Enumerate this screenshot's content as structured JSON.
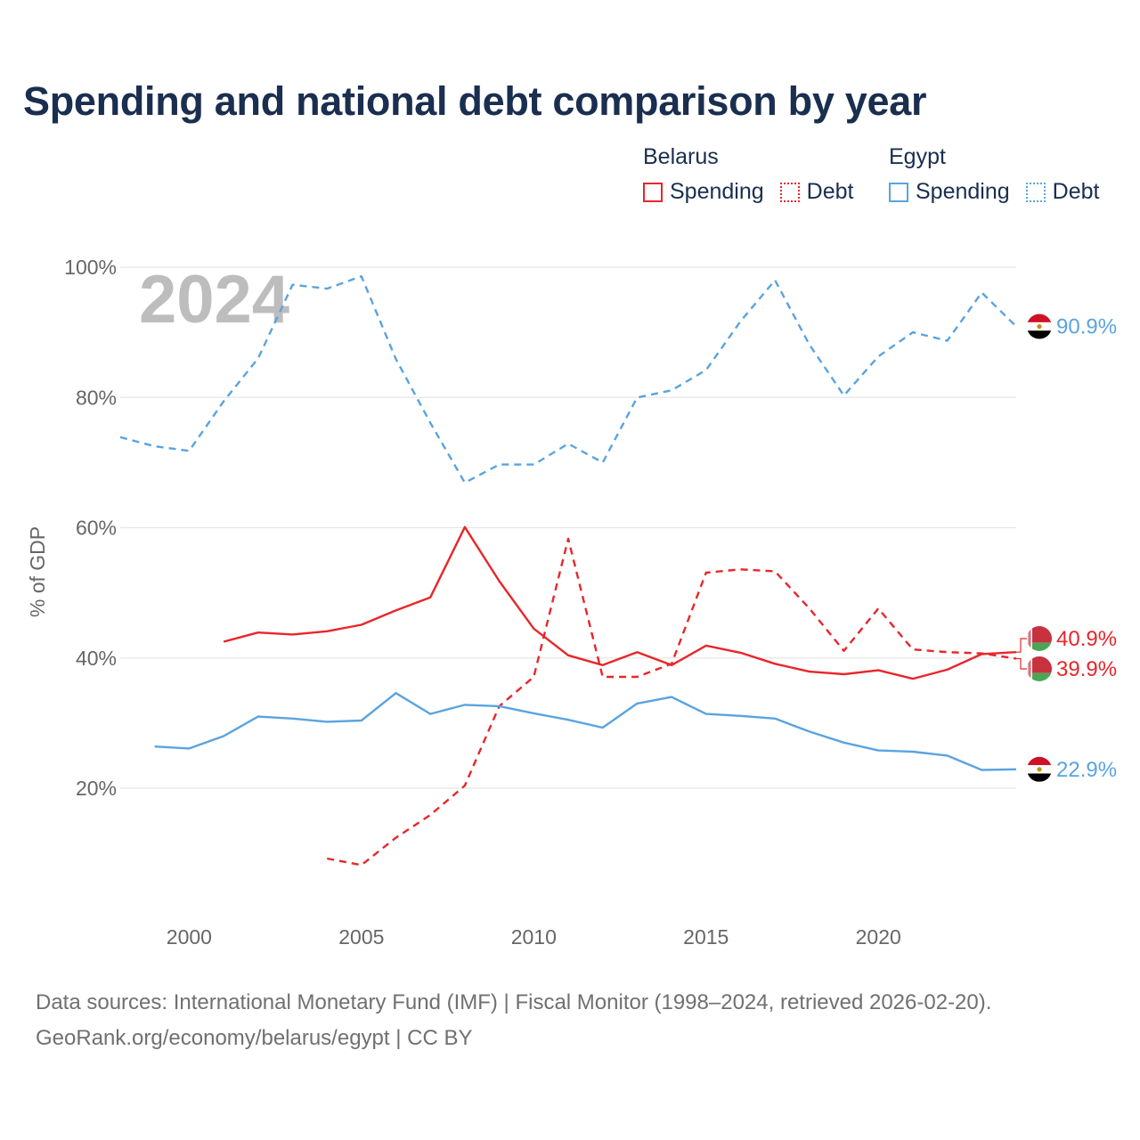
{
  "title": "Spending and national debt comparison by year",
  "legend": {
    "groups": [
      {
        "name": "Belarus",
        "color": "#e8262a",
        "items": [
          "Spending",
          "Debt"
        ]
      },
      {
        "name": "Egypt",
        "color": "#5aa3e0",
        "items": [
          "Spending",
          "Debt"
        ]
      }
    ]
  },
  "year_label": "2024",
  "source_line1": "Data sources: International Monetary Fund (IMF) | Fiscal Monitor (1998–2024, retrieved 2026-02-20).",
  "source_line2": "GeoRank.org/economy/belarus/egypt | CC BY",
  "chart_data": {
    "type": "line",
    "title": "Spending and national debt comparison by year",
    "xlabel": "",
    "ylabel": "% of GDP",
    "xlim": [
      1998,
      2024
    ],
    "ylim": [
      5,
      102
    ],
    "xticks": [
      2000,
      2005,
      2010,
      2015,
      2020
    ],
    "yticks": [
      20,
      40,
      60,
      80,
      100
    ],
    "ytick_labels": [
      "20%",
      "40%",
      "60%",
      "80%",
      "100%"
    ],
    "grid": true,
    "series": [
      {
        "name": "Belarus Spending",
        "country": "Belarus",
        "metric": "Spending",
        "color": "#e8262a",
        "dash": "solid",
        "x": [
          2001,
          2002,
          2003,
          2004,
          2005,
          2006,
          2007,
          2008,
          2009,
          2010,
          2011,
          2012,
          2013,
          2014,
          2015,
          2016,
          2017,
          2018,
          2019,
          2020,
          2021,
          2022,
          2023,
          2024
        ],
        "values": [
          42.5,
          43.9,
          43.6,
          44.1,
          45.1,
          47.3,
          49.3,
          60.1,
          51.8,
          44.5,
          40.4,
          38.9,
          40.9,
          38.9,
          41.9,
          40.8,
          39.1,
          37.9,
          37.5,
          38.1,
          36.8,
          38.2,
          40.6,
          40.9
        ],
        "end_label": "40.9%"
      },
      {
        "name": "Belarus Debt",
        "country": "Belarus",
        "metric": "Debt",
        "color": "#e8262a",
        "dash": "dashed",
        "x": [
          2004,
          2005,
          2006,
          2007,
          2008,
          2009,
          2010,
          2011,
          2012,
          2013,
          2014,
          2015,
          2016,
          2017,
          2018,
          2019,
          2020,
          2021,
          2022,
          2023,
          2024
        ],
        "values": [
          9.2,
          8.2,
          12.4,
          15.9,
          20.4,
          32.6,
          37.1,
          58.3,
          37.1,
          37.1,
          39.1,
          53.1,
          53.6,
          53.3,
          47.6,
          41.1,
          47.6,
          41.3,
          40.9,
          40.7,
          39.9
        ],
        "end_label": "39.9%"
      },
      {
        "name": "Egypt Spending",
        "country": "Egypt",
        "metric": "Spending",
        "color": "#5aa3e0",
        "dash": "solid",
        "x": [
          1999,
          2000,
          2001,
          2002,
          2003,
          2004,
          2005,
          2006,
          2007,
          2008,
          2009,
          2010,
          2011,
          2012,
          2013,
          2014,
          2015,
          2016,
          2017,
          2018,
          2019,
          2020,
          2021,
          2022,
          2023,
          2024
        ],
        "values": [
          26.4,
          26.1,
          28.0,
          31.0,
          30.7,
          30.2,
          30.4,
          34.6,
          31.4,
          32.8,
          32.6,
          31.5,
          30.5,
          29.3,
          33.0,
          34.0,
          31.4,
          31.1,
          30.7,
          28.7,
          27.0,
          25.8,
          25.6,
          25.0,
          22.8,
          22.9
        ],
        "end_label": "22.9%"
      },
      {
        "name": "Egypt Debt",
        "country": "Egypt",
        "metric": "Debt",
        "color": "#5aa3e0",
        "dash": "dashed",
        "x": [
          1998,
          1999,
          2000,
          2001,
          2002,
          2003,
          2004,
          2005,
          2006,
          2007,
          2008,
          2009,
          2010,
          2011,
          2012,
          2013,
          2014,
          2015,
          2016,
          2017,
          2018,
          2019,
          2020,
          2021,
          2022,
          2023,
          2024
        ],
        "values": [
          73.9,
          72.5,
          71.8,
          79.4,
          86.0,
          97.3,
          96.7,
          98.6,
          85.9,
          76.1,
          66.9,
          69.7,
          69.7,
          72.9,
          70.0,
          80.0,
          81.1,
          84.2,
          91.7,
          98.0,
          88.1,
          80.3,
          86.3,
          90.0,
          88.7,
          96.1,
          90.9
        ],
        "end_label": "90.9%"
      }
    ]
  }
}
